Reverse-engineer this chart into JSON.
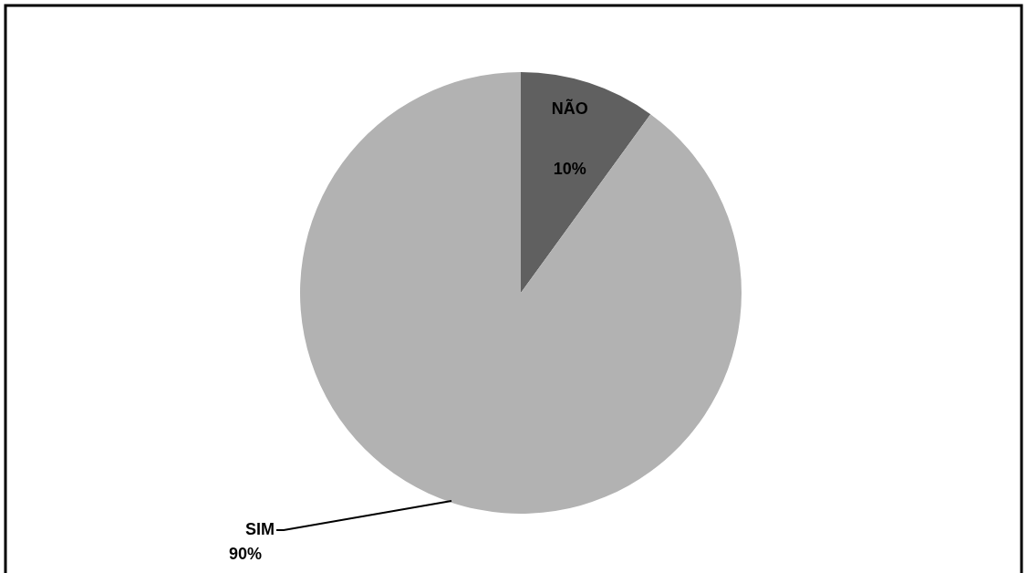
{
  "chart_data": {
    "type": "pie",
    "categories": [
      "NÃO",
      "SIM"
    ],
    "values": [
      10,
      90
    ],
    "colors": [
      "#606060",
      "#b2b2b2"
    ],
    "value_labels": [
      "10%",
      "90%"
    ]
  }
}
